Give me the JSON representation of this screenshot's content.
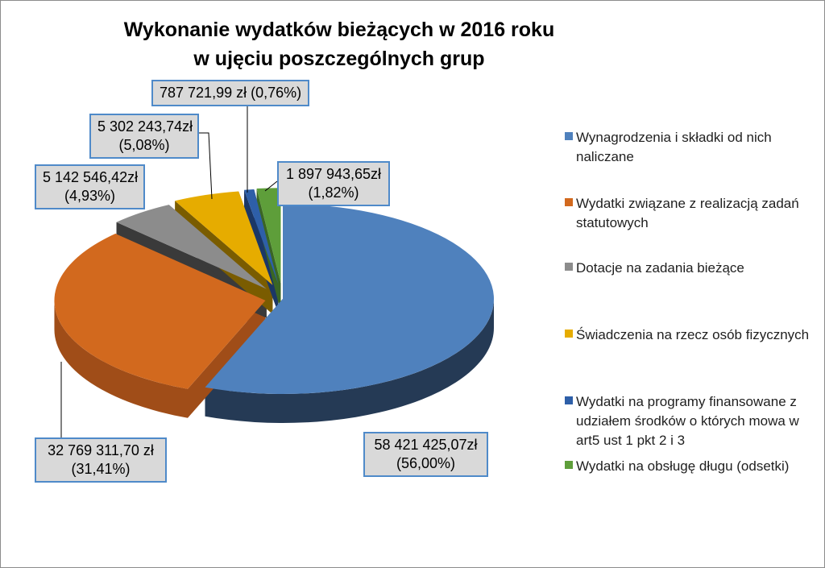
{
  "chart_data": {
    "type": "pie",
    "title": "Wykonanie wydatków bieżących w 2016 roku w ujęciu poszczególnych grup",
    "legend_position": "right",
    "slices": [
      {
        "name": "Wynagrodzenia i składki od nich naliczane",
        "value": 58421425.07,
        "percent": 56.0,
        "label_value": "58 421 425,07zł",
        "label_percent": "(56,00%)",
        "color": "#4f81bd",
        "side_color": "#253a55"
      },
      {
        "name": "Wydatki związane z realizacją zadań statutowych",
        "value": 32769311.7,
        "percent": 31.41,
        "label_value": "32 769 311,70 zł",
        "label_percent": "(31,41%)",
        "color": "#d2691e",
        "side_color": "#a04d18"
      },
      {
        "name": "Dotacje na zadania bieżące",
        "value": 5142546.42,
        "percent": 4.93,
        "label_value": "5 142 546,42zł",
        "label_percent": "(4,93%)",
        "color": "#8c8c8c",
        "side_color": "#3a3a3a"
      },
      {
        "name": "Świadczenia na rzecz osób fizycznych",
        "value": 5302243.74,
        "percent": 5.08,
        "label_value": "5 302 243,74zł",
        "label_percent": "(5,08%)",
        "color": "#e6ac00",
        "side_color": "#7a5c00"
      },
      {
        "name": "Wydatki na programy finansowane z udziałem środków o których mowa w art5 ust 1 pkt 2 i 3",
        "value": 787721.99,
        "percent": 0.76,
        "label_value": "787 721,99 zł (0,76%)",
        "label_percent": "",
        "color": "#2e5fa8",
        "side_color": "#1b3766"
      },
      {
        "name": "Wydatki na obsługę długu (odsetki)",
        "value": 1897943.65,
        "percent": 1.82,
        "label_value": "1 897 943,65zł",
        "label_percent": "(1,82%)",
        "color": "#5e9e3a",
        "side_color": "#3a6624"
      }
    ]
  }
}
